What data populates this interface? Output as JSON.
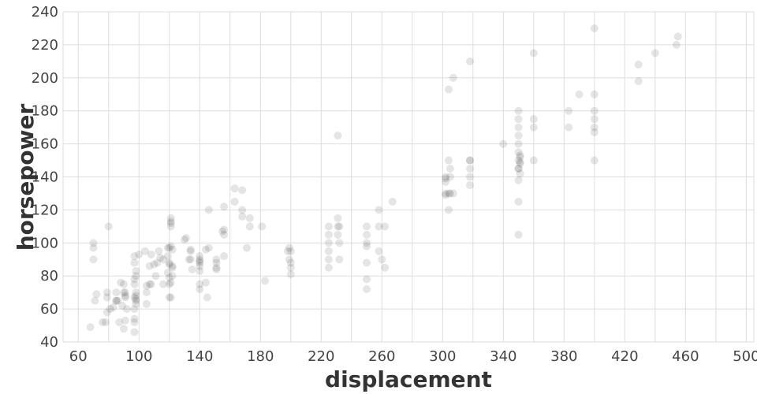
{
  "chart_data": {
    "type": "scatter",
    "xlabel": "displacement",
    "ylabel": "horsepower",
    "xlim": [
      50,
      505
    ],
    "ylim": [
      40,
      240
    ],
    "x_ticks": [
      60,
      100,
      140,
      180,
      220,
      260,
      300,
      340,
      380,
      420,
      460,
      500
    ],
    "y_ticks": [
      40,
      60,
      80,
      100,
      120,
      140,
      160,
      180,
      200,
      220,
      240
    ],
    "grid": true,
    "point_color": "#333333",
    "series": [
      {
        "points": [
          [
            68,
            49
          ],
          [
            70,
            90
          ],
          [
            70,
            97
          ],
          [
            70,
            100
          ],
          [
            71,
            65
          ],
          [
            72,
            69
          ],
          [
            76,
            52
          ],
          [
            78,
            52
          ],
          [
            79,
            58
          ],
          [
            79,
            67
          ],
          [
            79,
            70
          ],
          [
            80,
            110
          ],
          [
            81,
            60
          ],
          [
            83,
            61
          ],
          [
            85,
            65
          ],
          [
            85,
            65
          ],
          [
            85,
            70
          ],
          [
            86,
            65
          ],
          [
            87,
            52
          ],
          [
            88,
            76
          ],
          [
            89,
            62
          ],
          [
            90,
            70
          ],
          [
            90,
            75
          ],
          [
            90,
            48
          ],
          [
            91,
            53
          ],
          [
            91,
            67
          ],
          [
            91,
            68
          ],
          [
            91,
            70
          ],
          [
            92,
            60
          ],
          [
            97,
            46
          ],
          [
            97,
            52
          ],
          [
            97,
            54
          ],
          [
            97,
            60
          ],
          [
            97,
            67
          ],
          [
            97,
            75
          ],
          [
            97,
            78
          ],
          [
            97,
            88
          ],
          [
            97,
            92
          ],
          [
            98,
            63
          ],
          [
            98,
            65
          ],
          [
            98,
            66
          ],
          [
            98,
            68
          ],
          [
            98,
            70
          ],
          [
            98,
            80
          ],
          [
            98,
            83
          ],
          [
            100,
            93
          ],
          [
            104,
            95
          ],
          [
            105,
            63
          ],
          [
            105,
            70
          ],
          [
            105,
            74
          ],
          [
            107,
            75
          ],
          [
            107,
            86
          ],
          [
            108,
            75
          ],
          [
            108,
            93
          ],
          [
            110,
            87
          ],
          [
            111,
            80
          ],
          [
            112,
            88
          ],
          [
            113,
            95
          ],
          [
            114,
            91
          ],
          [
            116,
            75
          ],
          [
            116,
            90
          ],
          [
            119,
            82
          ],
          [
            119,
            92
          ],
          [
            119,
            97
          ],
          [
            120,
            67
          ],
          [
            120,
            75
          ],
          [
            120,
            79
          ],
          [
            120,
            87
          ],
          [
            120,
            88
          ],
          [
            120,
            97
          ],
          [
            121,
            67
          ],
          [
            121,
            76
          ],
          [
            121,
            98
          ],
          [
            121,
            110
          ],
          [
            121,
            112
          ],
          [
            121,
            113
          ],
          [
            121,
            115
          ],
          [
            122,
            80
          ],
          [
            122,
            85
          ],
          [
            122,
            86
          ],
          [
            122,
            96
          ],
          [
            130,
            102
          ],
          [
            131,
            103
          ],
          [
            133,
            90
          ],
          [
            134,
            90
          ],
          [
            134,
            95
          ],
          [
            134,
            96
          ],
          [
            135,
            84
          ],
          [
            140,
            72
          ],
          [
            140,
            75
          ],
          [
            140,
            83
          ],
          [
            140,
            86
          ],
          [
            140,
            88
          ],
          [
            140,
            89
          ],
          [
            140,
            90
          ],
          [
            140,
            92
          ],
          [
            144,
            76
          ],
          [
            144,
            96
          ],
          [
            145,
            67
          ],
          [
            146,
            97
          ],
          [
            146,
            120
          ],
          [
            151,
            84
          ],
          [
            151,
            85
          ],
          [
            151,
            88
          ],
          [
            151,
            90
          ],
          [
            155,
            107
          ],
          [
            156,
            92
          ],
          [
            156,
            105
          ],
          [
            156,
            108
          ],
          [
            156,
            122
          ],
          [
            163,
            125
          ],
          [
            163,
            133
          ],
          [
            168,
            116
          ],
          [
            168,
            120
          ],
          [
            168,
            132
          ],
          [
            171,
            97
          ],
          [
            173,
            110
          ],
          [
            173,
            115
          ],
          [
            181,
            110
          ],
          [
            183,
            77
          ],
          [
            198,
            95
          ],
          [
            199,
            90
          ],
          [
            199,
            97
          ],
          [
            200,
            81
          ],
          [
            200,
            85
          ],
          [
            200,
            88
          ],
          [
            200,
            95
          ],
          [
            225,
            85
          ],
          [
            225,
            90
          ],
          [
            225,
            95
          ],
          [
            225,
            100
          ],
          [
            225,
            105
          ],
          [
            225,
            110
          ],
          [
            231,
            105
          ],
          [
            231,
            110
          ],
          [
            231,
            115
          ],
          [
            231,
            165
          ],
          [
            232,
            90
          ],
          [
            232,
            100
          ],
          [
            232,
            110
          ],
          [
            250,
            72
          ],
          [
            250,
            78
          ],
          [
            250,
            88
          ],
          [
            250,
            98
          ],
          [
            250,
            100
          ],
          [
            250,
            105
          ],
          [
            250,
            110
          ],
          [
            258,
            95
          ],
          [
            258,
            110
          ],
          [
            258,
            120
          ],
          [
            260,
            90
          ],
          [
            262,
            110
          ],
          [
            262,
            85
          ],
          [
            267,
            125
          ],
          [
            302,
            129
          ],
          [
            302,
            130
          ],
          [
            302,
            137
          ],
          [
            302,
            139
          ],
          [
            302,
            140
          ],
          [
            304,
            120
          ],
          [
            304,
            130
          ],
          [
            304,
            150
          ],
          [
            304,
            193
          ],
          [
            305,
            130
          ],
          [
            305,
            145
          ],
          [
            305,
            140
          ],
          [
            307,
            130
          ],
          [
            307,
            200
          ],
          [
            318,
            135
          ],
          [
            318,
            140
          ],
          [
            318,
            145
          ],
          [
            318,
            150
          ],
          [
            318,
            150
          ],
          [
            318,
            210
          ],
          [
            340,
            160
          ],
          [
            350,
            105
          ],
          [
            350,
            125
          ],
          [
            350,
            138
          ],
          [
            350,
            145
          ],
          [
            350,
            145
          ],
          [
            350,
            150
          ],
          [
            350,
            155
          ],
          [
            350,
            160
          ],
          [
            350,
            165
          ],
          [
            350,
            170
          ],
          [
            350,
            175
          ],
          [
            350,
            180
          ],
          [
            351,
            142
          ],
          [
            351,
            148
          ],
          [
            351,
            149
          ],
          [
            351,
            152
          ],
          [
            351,
            153
          ],
          [
            360,
            150
          ],
          [
            360,
            170
          ],
          [
            360,
            175
          ],
          [
            360,
            215
          ],
          [
            383,
            170
          ],
          [
            383,
            180
          ],
          [
            390,
            190
          ],
          [
            400,
            150
          ],
          [
            400,
            167
          ],
          [
            400,
            170
          ],
          [
            400,
            175
          ],
          [
            400,
            180
          ],
          [
            400,
            190
          ],
          [
            400,
            230
          ],
          [
            429,
            198
          ],
          [
            429,
            208
          ],
          [
            440,
            215
          ],
          [
            454,
            220
          ],
          [
            455,
            225
          ]
        ]
      }
    ]
  }
}
